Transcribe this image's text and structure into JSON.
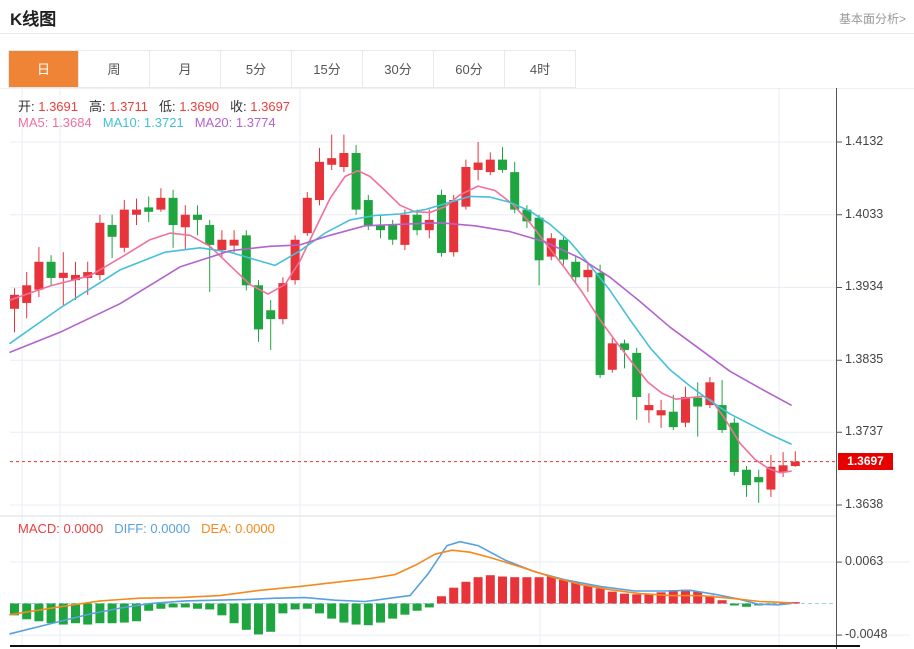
{
  "header": {
    "title": "K线图",
    "link_label": "基本面分析>"
  },
  "tabs": [
    {
      "label": "日",
      "active": true
    },
    {
      "label": "周",
      "active": false
    },
    {
      "label": "月",
      "active": false
    },
    {
      "label": "5分",
      "active": false
    },
    {
      "label": "15分",
      "active": false
    },
    {
      "label": "30分",
      "active": false
    },
    {
      "label": "60分",
      "active": false
    },
    {
      "label": "4时",
      "active": false
    }
  ],
  "main_legend": {
    "ohlc": [
      {
        "label": "开:",
        "value": "1.3691"
      },
      {
        "label": "高:",
        "value": "1.3711"
      },
      {
        "label": "低:",
        "value": "1.3690"
      },
      {
        "label": "收:",
        "value": "1.3697"
      }
    ],
    "ma": [
      {
        "label": "MA5:",
        "value": "1.3684",
        "color": "#f0719b"
      },
      {
        "label": "MA10:",
        "value": "1.3721",
        "color": "#45c0d8"
      },
      {
        "label": "MA20:",
        "value": "1.3774",
        "color": "#b264cc"
      }
    ]
  },
  "macd_legend": [
    {
      "label": "MACD:",
      "value": "0.0000",
      "color": "#e8403d"
    },
    {
      "label": "DIFF:",
      "value": "0.0000",
      "color": "#58a0e0"
    },
    {
      "label": "DEA:",
      "value": "0.0000",
      "color": "#f5891d"
    }
  ],
  "current_price": {
    "label": "1.3697",
    "value": 1.3697
  },
  "colors": {
    "up": "#e7333a",
    "down": "#1fa53f",
    "ma5": "#f0719b",
    "ma10": "#45c0d8",
    "ma20": "#b264cc",
    "diff": "#58a0e0",
    "dea": "#f5891d",
    "hist_up": "#e7333a",
    "hist_down": "#1fa53f",
    "accent_orange": "#ef8436",
    "price_tag_bg": "#e60000",
    "price_line": "#e8312f",
    "grid": "#e9eef6",
    "zero_line": "#9fd4ea",
    "axis_border": "#555555",
    "bottom_line": "#111111",
    "axis_text": "#444444",
    "value_red": "#e8403d"
  },
  "chart_data": {
    "type": "candlestick+macd",
    "title": "K线图",
    "price_axis": {
      "min": 1.3638,
      "max": 1.4132,
      "ticks": [
        "1.4132",
        "1.4033",
        "1.3934",
        "1.3835",
        "1.3737",
        "1.3638"
      ]
    },
    "macd_axis": {
      "ticks": [
        {
          "label": "0.0063",
          "value": 0.0063
        },
        {
          "label": "-0.0048",
          "value": -0.0048
        }
      ]
    },
    "current_price": 1.3697,
    "candles_ohlc": [
      [
        1.3905,
        1.3933,
        1.3873,
        1.3924
      ],
      [
        1.3913,
        1.3955,
        1.3892,
        1.3937
      ],
      [
        1.3931,
        1.3989,
        1.3921,
        1.3969
      ],
      [
        1.3969,
        1.3978,
        1.3937,
        1.3947
      ],
      [
        1.3947,
        1.3982,
        1.391,
        1.3954
      ],
      [
        1.3944,
        1.3969,
        1.3917,
        1.3951
      ],
      [
        1.3947,
        1.3969,
        1.3924,
        1.3955
      ],
      [
        1.3951,
        1.4033,
        1.3944,
        1.4022
      ],
      [
        1.4019,
        1.4033,
        1.3974,
        1.4003
      ],
      [
        1.3988,
        1.4053,
        1.3982,
        1.404
      ],
      [
        1.4033,
        1.4055,
        1.4019,
        1.404
      ],
      [
        1.4043,
        1.4058,
        1.4023,
        1.4037
      ],
      [
        1.404,
        1.4069,
        1.4037,
        1.4056
      ],
      [
        1.4056,
        1.4067,
        1.3988,
        1.4019
      ],
      [
        1.4016,
        1.4046,
        1.3985,
        1.4033
      ],
      [
        1.4033,
        1.4046,
        1.4005,
        1.4026
      ],
      [
        1.4019,
        1.4026,
        1.3928,
        1.3992
      ],
      [
        1.3985,
        1.4012,
        1.3976,
        1.3999
      ],
      [
        1.3991,
        1.4012,
        1.3982,
        1.3999
      ],
      [
        1.4005,
        1.4012,
        1.393,
        1.3937
      ],
      [
        1.3937,
        1.3944,
        1.386,
        1.3877
      ],
      [
        1.3903,
        1.3917,
        1.3849,
        1.3891
      ],
      [
        1.3891,
        1.3948,
        1.3884,
        1.394
      ],
      [
        1.3944,
        1.4005,
        1.3938,
        1.3999
      ],
      [
        1.4008,
        1.4064,
        1.4004,
        1.4056
      ],
      [
        1.4053,
        1.4124,
        1.4046,
        1.4105
      ],
      [
        1.4101,
        1.4142,
        1.4094,
        1.411
      ],
      [
        1.4098,
        1.4142,
        1.4091,
        1.4117
      ],
      [
        1.4117,
        1.4128,
        1.4033,
        1.404
      ],
      [
        1.4053,
        1.406,
        1.4012,
        1.4019
      ],
      [
        1.4019,
        1.4033,
        1.4001,
        1.4012
      ],
      [
        1.4019,
        1.4026,
        1.3992,
        1.3999
      ],
      [
        1.3992,
        1.404,
        1.3985,
        1.4033
      ],
      [
        1.4033,
        1.404,
        1.4005,
        1.4012
      ],
      [
        1.4012,
        1.404,
        1.4001,
        1.4026
      ],
      [
        1.406,
        1.4067,
        1.3976,
        1.3981
      ],
      [
        1.3982,
        1.406,
        1.3976,
        1.4053
      ],
      [
        1.4044,
        1.4108,
        1.404,
        1.4098
      ],
      [
        1.4094,
        1.4132,
        1.408,
        1.4104
      ],
      [
        1.4091,
        1.4118,
        1.4087,
        1.4108
      ],
      [
        1.4108,
        1.4125,
        1.409,
        1.4094
      ],
      [
        1.4091,
        1.4105,
        1.4035,
        1.404
      ],
      [
        1.404,
        1.4046,
        1.4015,
        1.4024
      ],
      [
        1.4029,
        1.4033,
        1.3937,
        1.3971
      ],
      [
        1.3976,
        1.4008,
        1.3971,
        1.4001
      ],
      [
        1.3999,
        1.4005,
        1.3965,
        1.3972
      ],
      [
        1.3969,
        1.3978,
        1.3941,
        1.3948
      ],
      [
        1.3948,
        1.3969,
        1.3928,
        1.3958
      ],
      [
        1.3954,
        1.3965,
        1.3811,
        1.3815
      ],
      [
        1.3822,
        1.3865,
        1.3818,
        1.3858
      ],
      [
        1.3858,
        1.3863,
        1.3824,
        1.3849
      ],
      [
        1.3845,
        1.3852,
        1.3754,
        1.3785
      ],
      [
        1.3767,
        1.379,
        1.375,
        1.3774
      ],
      [
        1.376,
        1.3781,
        1.3743,
        1.3767
      ],
      [
        1.3765,
        1.3788,
        1.374,
        1.3744
      ],
      [
        1.375,
        1.3799,
        1.3744,
        1.3785
      ],
      [
        1.3784,
        1.3805,
        1.3731,
        1.3772
      ],
      [
        1.3774,
        1.3812,
        1.377,
        1.3805
      ],
      [
        1.3774,
        1.3808,
        1.3736,
        1.374
      ],
      [
        1.375,
        1.3757,
        1.3678,
        1.3683
      ],
      [
        1.3686,
        1.3691,
        1.3649,
        1.3665
      ],
      [
        1.3676,
        1.3686,
        1.3641,
        1.3669
      ],
      [
        1.3659,
        1.3706,
        1.3649,
        1.369
      ],
      [
        1.3683,
        1.371,
        1.3676,
        1.3692
      ],
      [
        1.3691,
        1.3711,
        1.369,
        1.3697
      ]
    ],
    "ma5": [
      [
        10,
        1.3917
      ],
      [
        50,
        1.3936
      ],
      [
        90,
        1.395
      ],
      [
        120,
        1.3974
      ],
      [
        150,
        1.3999
      ],
      [
        170,
        1.4008
      ],
      [
        190,
        1.4005
      ],
      [
        210,
        1.399
      ],
      [
        230,
        1.3964
      ],
      [
        250,
        1.3938
      ],
      [
        268,
        1.3925
      ],
      [
        285,
        1.3938
      ],
      [
        300,
        1.397
      ],
      [
        315,
        1.4013
      ],
      [
        330,
        1.4055
      ],
      [
        345,
        1.4085
      ],
      [
        358,
        1.4093
      ],
      [
        370,
        1.4085
      ],
      [
        385,
        1.4066
      ],
      [
        400,
        1.4046
      ],
      [
        415,
        1.4037
      ],
      [
        430,
        1.4036
      ],
      [
        445,
        1.4044
      ],
      [
        460,
        1.406
      ],
      [
        478,
        1.4072
      ],
      [
        495,
        1.4066
      ],
      [
        512,
        1.4048
      ],
      [
        530,
        1.4022
      ],
      [
        548,
        1.399
      ],
      [
        565,
        1.396
      ],
      [
        582,
        1.3928
      ],
      [
        600,
        1.389
      ],
      [
        615,
        1.3862
      ],
      [
        632,
        1.3832
      ],
      [
        648,
        1.3805
      ],
      [
        662,
        1.379
      ],
      [
        676,
        1.3782
      ],
      [
        690,
        1.3784
      ],
      [
        703,
        1.3786
      ],
      [
        712,
        1.378
      ],
      [
        725,
        1.3755
      ],
      [
        740,
        1.3722
      ],
      [
        755,
        1.37
      ],
      [
        768,
        1.3688
      ],
      [
        780,
        1.3682
      ],
      [
        791,
        1.3684
      ]
    ],
    "ma10": [
      [
        10,
        1.3858
      ],
      [
        60,
        1.3906
      ],
      [
        120,
        1.3958
      ],
      [
        165,
        1.3982
      ],
      [
        200,
        1.3988
      ],
      [
        230,
        1.3982
      ],
      [
        255,
        1.3972
      ],
      [
        275,
        1.3964
      ],
      [
        300,
        1.3984
      ],
      [
        325,
        1.4008
      ],
      [
        350,
        1.4026
      ],
      [
        375,
        1.4032
      ],
      [
        400,
        1.4034
      ],
      [
        425,
        1.404
      ],
      [
        450,
        1.405
      ],
      [
        470,
        1.4058
      ],
      [
        490,
        1.4057
      ],
      [
        510,
        1.405
      ],
      [
        530,
        1.4038
      ],
      [
        550,
        1.402
      ],
      [
        570,
        1.3996
      ],
      [
        590,
        1.3964
      ],
      [
        610,
        1.393
      ],
      [
        630,
        1.389
      ],
      [
        650,
        1.3852
      ],
      [
        670,
        1.3822
      ],
      [
        690,
        1.38
      ],
      [
        710,
        1.378
      ],
      [
        730,
        1.3762
      ],
      [
        750,
        1.3748
      ],
      [
        770,
        1.3734
      ],
      [
        791,
        1.3721
      ]
    ],
    "ma20": [
      [
        10,
        1.3846
      ],
      [
        60,
        1.3873
      ],
      [
        120,
        1.3912
      ],
      [
        180,
        1.3962
      ],
      [
        230,
        1.3984
      ],
      [
        270,
        1.399
      ],
      [
        300,
        1.3992
      ],
      [
        330,
        1.4005
      ],
      [
        365,
        1.4018
      ],
      [
        400,
        1.402
      ],
      [
        440,
        1.4022
      ],
      [
        475,
        1.4018
      ],
      [
        510,
        1.401
      ],
      [
        545,
        1.3996
      ],
      [
        580,
        1.3974
      ],
      [
        610,
        1.3948
      ],
      [
        640,
        1.3915
      ],
      [
        670,
        1.388
      ],
      [
        700,
        1.385
      ],
      [
        730,
        1.382
      ],
      [
        760,
        1.3797
      ],
      [
        791,
        1.3774
      ]
    ],
    "macd": {
      "hist": [
        -0.0018,
        -0.0024,
        -0.0027,
        -0.003,
        -0.0032,
        -0.003,
        -0.0032,
        -0.003,
        -0.003,
        -0.0029,
        -0.0027,
        -0.0011,
        -0.0008,
        -0.0006,
        -0.0006,
        -0.0008,
        -0.0009,
        -0.0018,
        -0.003,
        -0.004,
        -0.0047,
        -0.0043,
        -0.0015,
        -0.0009,
        -0.0008,
        -0.0015,
        -0.0023,
        -0.0029,
        -0.0032,
        -0.0033,
        -0.0029,
        -0.0023,
        -0.0017,
        -0.0011,
        -0.0006,
        0.0011,
        0.0024,
        0.0033,
        0.004,
        0.0043,
        0.0041,
        0.004,
        0.004,
        0.004,
        0.0041,
        0.0036,
        0.0032,
        0.0027,
        0.0023,
        0.0018,
        0.0015,
        0.0014,
        0.0015,
        0.0017,
        0.002,
        0.0021,
        0.0018,
        0.0012,
        0.0005,
        -0.0003,
        -0.0005,
        -0.0003,
        -0.0002,
        0.0002,
        0.0002
      ],
      "diff": [
        [
          10,
          -0.0046
        ],
        [
          50,
          -0.0031
        ],
        [
          90,
          -0.0016
        ],
        [
          120,
          -0.0007
        ],
        [
          150,
          0.0
        ],
        [
          185,
          0.0004
        ],
        [
          215,
          0.0005
        ],
        [
          245,
          0.0006
        ],
        [
          275,
          0.0008
        ],
        [
          305,
          0.0009
        ],
        [
          335,
          0.0005
        ],
        [
          365,
          0.0003
        ],
        [
          390,
          0.0008
        ],
        [
          410,
          0.0012
        ],
        [
          428,
          0.0045
        ],
        [
          447,
          0.0088
        ],
        [
          460,
          0.0094
        ],
        [
          478,
          0.0088
        ],
        [
          505,
          0.0066
        ],
        [
          535,
          0.0048
        ],
        [
          565,
          0.0036
        ],
        [
          600,
          0.0026
        ],
        [
          635,
          0.0019
        ],
        [
          665,
          0.0019
        ],
        [
          690,
          0.002
        ],
        [
          715,
          0.0014
        ],
        [
          738,
          0.0007
        ],
        [
          758,
          -0.0001
        ],
        [
          778,
          -0.0002
        ],
        [
          791,
          0.0
        ]
      ],
      "dea": [
        [
          10,
          -0.0017
        ],
        [
          60,
          -0.0005
        ],
        [
          100,
          0.0004
        ],
        [
          140,
          0.0008
        ],
        [
          180,
          0.0009
        ],
        [
          220,
          0.0012
        ],
        [
          260,
          0.002
        ],
        [
          300,
          0.0026
        ],
        [
          340,
          0.0033
        ],
        [
          370,
          0.0038
        ],
        [
          395,
          0.0044
        ],
        [
          415,
          0.0058
        ],
        [
          435,
          0.0075
        ],
        [
          452,
          0.0081
        ],
        [
          470,
          0.0078
        ],
        [
          490,
          0.007
        ],
        [
          520,
          0.0056
        ],
        [
          550,
          0.0041
        ],
        [
          580,
          0.0029
        ],
        [
          610,
          0.0021
        ],
        [
          640,
          0.0015
        ],
        [
          670,
          0.0012
        ],
        [
          700,
          0.0012
        ],
        [
          730,
          0.0008
        ],
        [
          760,
          0.0003
        ],
        [
          791,
          0.0001
        ]
      ]
    }
  }
}
